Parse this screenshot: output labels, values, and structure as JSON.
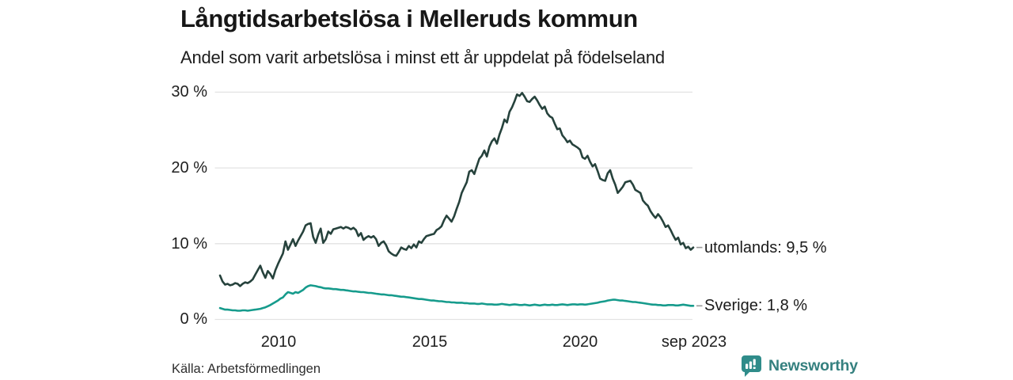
{
  "title": "Långtidsarbetslösa i Melleruds kommun",
  "subtitle": "Andel som varit arbetslösa i minst ett år uppdelat på födelseland",
  "source": "Källa: Arbetsförmedlingen",
  "branding": {
    "name": "Newsworthy",
    "icon_color": "#2F8C8A",
    "text_color": "#35807F"
  },
  "colors": {
    "background": "#ffffff",
    "gridline": "#e3e3e3",
    "text": "#1a1a1a",
    "end_tick_dash": "#999999"
  },
  "chart_data": {
    "type": "line",
    "title": "Långtidsarbetslösa i Melleruds kommun",
    "subtitle": "Andel som varit arbetslösa i minst ett år uppdelat på födelseland",
    "unit": "%",
    "x_frequency": "monthly",
    "x_start": "2008-01",
    "x_end": "2023-09",
    "x_tick_labels": [
      "2010",
      "2015",
      "2020",
      "sep 2023"
    ],
    "y_tick_labels": [
      "30 %",
      "20 %",
      "10 %",
      "0 %"
    ],
    "y_ticks": [
      0,
      10,
      20,
      30
    ],
    "ylim": [
      0,
      30
    ],
    "grid": "horizontal",
    "legend_position": "end-of-line-labels",
    "series": [
      {
        "key": "utomlands",
        "name": "utomlands",
        "end_label": "utomlands: 9,5 %",
        "end_value": "9,5 %",
        "color": "#26423C",
        "values": [
          5.8,
          5.0,
          4.6,
          4.7,
          4.5,
          4.6,
          4.8,
          4.7,
          4.4,
          4.7,
          4.9,
          4.8,
          5.0,
          5.3,
          5.9,
          6.5,
          7.1,
          6.2,
          5.5,
          6.4,
          6.0,
          5.4,
          6.5,
          7.3,
          8.0,
          8.7,
          10.3,
          9.2,
          9.9,
          10.6,
          9.7,
          10.4,
          11.0,
          11.6,
          12.4,
          12.6,
          12.7,
          10.9,
          10.1,
          11.2,
          12.0,
          10.1,
          10.6,
          11.6,
          11.3,
          11.9,
          12.0,
          12.1,
          12.2,
          12.0,
          12.2,
          12.1,
          11.9,
          12.1,
          11.8,
          11.0,
          11.4,
          10.5,
          10.8,
          11.0,
          10.8,
          11.0,
          10.6,
          9.7,
          10.1,
          10.3,
          9.8,
          9.0,
          8.7,
          8.5,
          8.4,
          8.9,
          9.5,
          9.3,
          9.2,
          9.7,
          9.4,
          9.9,
          9.5,
          10.3,
          10.1,
          10.6,
          11.0,
          11.1,
          11.2,
          11.3,
          11.8,
          12.0,
          12.3,
          13.1,
          13.7,
          13.3,
          12.9,
          13.6,
          14.6,
          15.5,
          16.7,
          17.4,
          18.1,
          19.5,
          19.7,
          19.2,
          20.2,
          21.2,
          21.6,
          22.3,
          21.5,
          22.8,
          23.5,
          23.9,
          23.2,
          24.4,
          25.3,
          26.4,
          26.0,
          27.4,
          28.0,
          28.8,
          29.7,
          29.5,
          29.9,
          29.4,
          28.8,
          28.7,
          29.1,
          29.4,
          28.9,
          28.3,
          27.8,
          28.1,
          27.2,
          26.8,
          26.6,
          25.8,
          25.1,
          25.2,
          24.3,
          23.9,
          23.4,
          23.6,
          23.1,
          22.9,
          22.7,
          22.4,
          21.4,
          21.2,
          21.6,
          20.8,
          20.2,
          20.5,
          19.6,
          18.6,
          18.4,
          18.3,
          19.3,
          19.7,
          18.6,
          17.8,
          16.7,
          17.1,
          17.5,
          18.1,
          18.2,
          18.3,
          17.8,
          17.1,
          16.9,
          16.7,
          15.7,
          15.3,
          15.0,
          14.3,
          13.8,
          13.4,
          13.9,
          13.5,
          12.9,
          12.2,
          12.4,
          11.8,
          11.1,
          10.5,
          10.8,
          9.9,
          10.1,
          9.4,
          9.6,
          9.2,
          9.5
        ]
      },
      {
        "key": "sverige",
        "name": "Sverige",
        "end_label": "Sverige: 1,8 %",
        "end_value": "1,8 %",
        "color": "#169B8C",
        "values": [
          1.5,
          1.4,
          1.3,
          1.3,
          1.25,
          1.2,
          1.2,
          1.15,
          1.15,
          1.2,
          1.2,
          1.15,
          1.2,
          1.25,
          1.3,
          1.35,
          1.4,
          1.5,
          1.6,
          1.75,
          1.9,
          2.1,
          2.3,
          2.5,
          2.75,
          2.9,
          3.3,
          3.6,
          3.5,
          3.4,
          3.6,
          3.5,
          3.7,
          3.9,
          4.2,
          4.4,
          4.5,
          4.45,
          4.4,
          4.3,
          4.25,
          4.15,
          4.1,
          4.1,
          4.05,
          4.0,
          4.0,
          3.95,
          3.9,
          3.9,
          3.85,
          3.8,
          3.75,
          3.7,
          3.7,
          3.65,
          3.6,
          3.6,
          3.55,
          3.5,
          3.5,
          3.45,
          3.4,
          3.35,
          3.3,
          3.3,
          3.25,
          3.2,
          3.2,
          3.15,
          3.1,
          3.05,
          3.0,
          3.0,
          2.95,
          2.9,
          2.85,
          2.8,
          2.75,
          2.7,
          2.7,
          2.65,
          2.6,
          2.55,
          2.5,
          2.5,
          2.45,
          2.4,
          2.4,
          2.35,
          2.3,
          2.3,
          2.25,
          2.25,
          2.2,
          2.2,
          2.2,
          2.15,
          2.15,
          2.1,
          2.1,
          2.1,
          2.05,
          2.05,
          2.1,
          2.05,
          2.0,
          2.0,
          2.0,
          1.95,
          1.95,
          2.0,
          2.05,
          2.0,
          1.95,
          1.9,
          1.95,
          2.0,
          1.95,
          1.9,
          1.9,
          1.95,
          1.9,
          1.85,
          1.9,
          1.95,
          1.9,
          1.85,
          1.9,
          1.95,
          1.9,
          1.9,
          1.95,
          1.9,
          1.9,
          1.95,
          2.0,
          1.95,
          1.9,
          1.95,
          2.0,
          2.0,
          1.95,
          2.0,
          2.0,
          1.95,
          2.0,
          2.05,
          2.1,
          2.15,
          2.2,
          2.3,
          2.35,
          2.4,
          2.5,
          2.55,
          2.6,
          2.6,
          2.55,
          2.5,
          2.5,
          2.45,
          2.4,
          2.35,
          2.3,
          2.3,
          2.25,
          2.2,
          2.15,
          2.1,
          2.05,
          2.0,
          1.95,
          1.95,
          1.9,
          1.9,
          1.85,
          1.85,
          1.9,
          1.9,
          1.9,
          1.85,
          1.85,
          1.9,
          1.95,
          1.9,
          1.85,
          1.8,
          1.8
        ]
      }
    ]
  }
}
